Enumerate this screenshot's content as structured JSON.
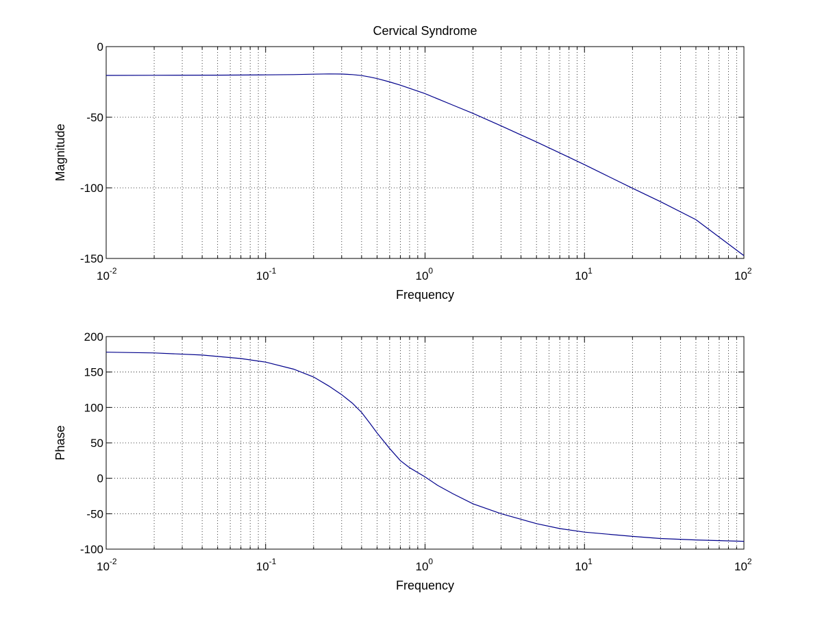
{
  "colors": {
    "background": "#ffffff",
    "axis": "#000000",
    "series": "#00008b"
  },
  "chart_data": [
    {
      "type": "line",
      "title": "Cervical Syndrome",
      "xlabel": "Frequency",
      "ylabel": "Magnitude",
      "xscale": "log",
      "xlim": [
        0.01,
        100
      ],
      "ylim": [
        -150,
        0
      ],
      "grid": true,
      "x_ticks": [
        {
          "value": 0.01,
          "base": "10",
          "exp": "-2"
        },
        {
          "value": 0.1,
          "base": "10",
          "exp": "-1"
        },
        {
          "value": 1,
          "base": "10",
          "exp": "0"
        },
        {
          "value": 10,
          "base": "10",
          "exp": "1"
        },
        {
          "value": 100,
          "base": "10",
          "exp": "2"
        }
      ],
      "y_ticks": [
        {
          "value": -150,
          "label": "-150"
        },
        {
          "value": -100,
          "label": "-100"
        },
        {
          "value": -50,
          "label": "-50"
        },
        {
          "value": 0,
          "label": "0"
        }
      ],
      "series": [
        {
          "x": [
            0.01,
            0.02,
            0.05,
            0.1,
            0.15,
            0.2,
            0.25,
            0.3,
            0.35,
            0.4,
            0.45,
            0.5,
            0.6,
            0.7,
            0.8,
            1,
            1.5,
            2,
            3,
            5,
            7,
            10,
            20,
            30,
            50,
            100
          ],
          "y": [
            -20.4,
            -20.3,
            -20.2,
            -20.0,
            -19.8,
            -19.5,
            -19.3,
            -19.4,
            -19.8,
            -20.5,
            -21.5,
            -22.6,
            -25.0,
            -27.3,
            -29.5,
            -33.3,
            -41.5,
            -47.3,
            -56.1,
            -67.5,
            -75.3,
            -83.6,
            -100.3,
            -109.8,
            -122.5,
            -148.0
          ]
        }
      ]
    },
    {
      "type": "line",
      "title": "",
      "xlabel": "Frequency",
      "ylabel": "Phase",
      "xscale": "log",
      "xlim": [
        0.01,
        100
      ],
      "ylim": [
        -100,
        200
      ],
      "grid": true,
      "x_ticks": [
        {
          "value": 0.01,
          "base": "10",
          "exp": "-2"
        },
        {
          "value": 0.1,
          "base": "10",
          "exp": "-1"
        },
        {
          "value": 1,
          "base": "10",
          "exp": "0"
        },
        {
          "value": 10,
          "base": "10",
          "exp": "1"
        },
        {
          "value": 100,
          "base": "10",
          "exp": "2"
        }
      ],
      "y_ticks": [
        {
          "value": -100,
          "label": "-100"
        },
        {
          "value": -50,
          "label": "-50"
        },
        {
          "value": 0,
          "label": "0"
        },
        {
          "value": 50,
          "label": "50"
        },
        {
          "value": 100,
          "label": "100"
        },
        {
          "value": 150,
          "label": "150"
        },
        {
          "value": 200,
          "label": "200"
        }
      ],
      "series": [
        {
          "x": [
            0.01,
            0.02,
            0.04,
            0.07,
            0.1,
            0.15,
            0.2,
            0.25,
            0.3,
            0.35,
            0.4,
            0.45,
            0.5,
            0.6,
            0.7,
            0.8,
            1,
            1.2,
            1.5,
            2,
            3,
            5,
            7,
            10,
            20,
            30,
            50,
            100
          ],
          "y": [
            178,
            177,
            174,
            169,
            164,
            154,
            143,
            130,
            118,
            106,
            93,
            78,
            64,
            42,
            25,
            15,
            2,
            -10,
            -22,
            -36,
            -50,
            -64,
            -71,
            -76,
            -82,
            -85,
            -87,
            -89
          ]
        }
      ]
    }
  ]
}
